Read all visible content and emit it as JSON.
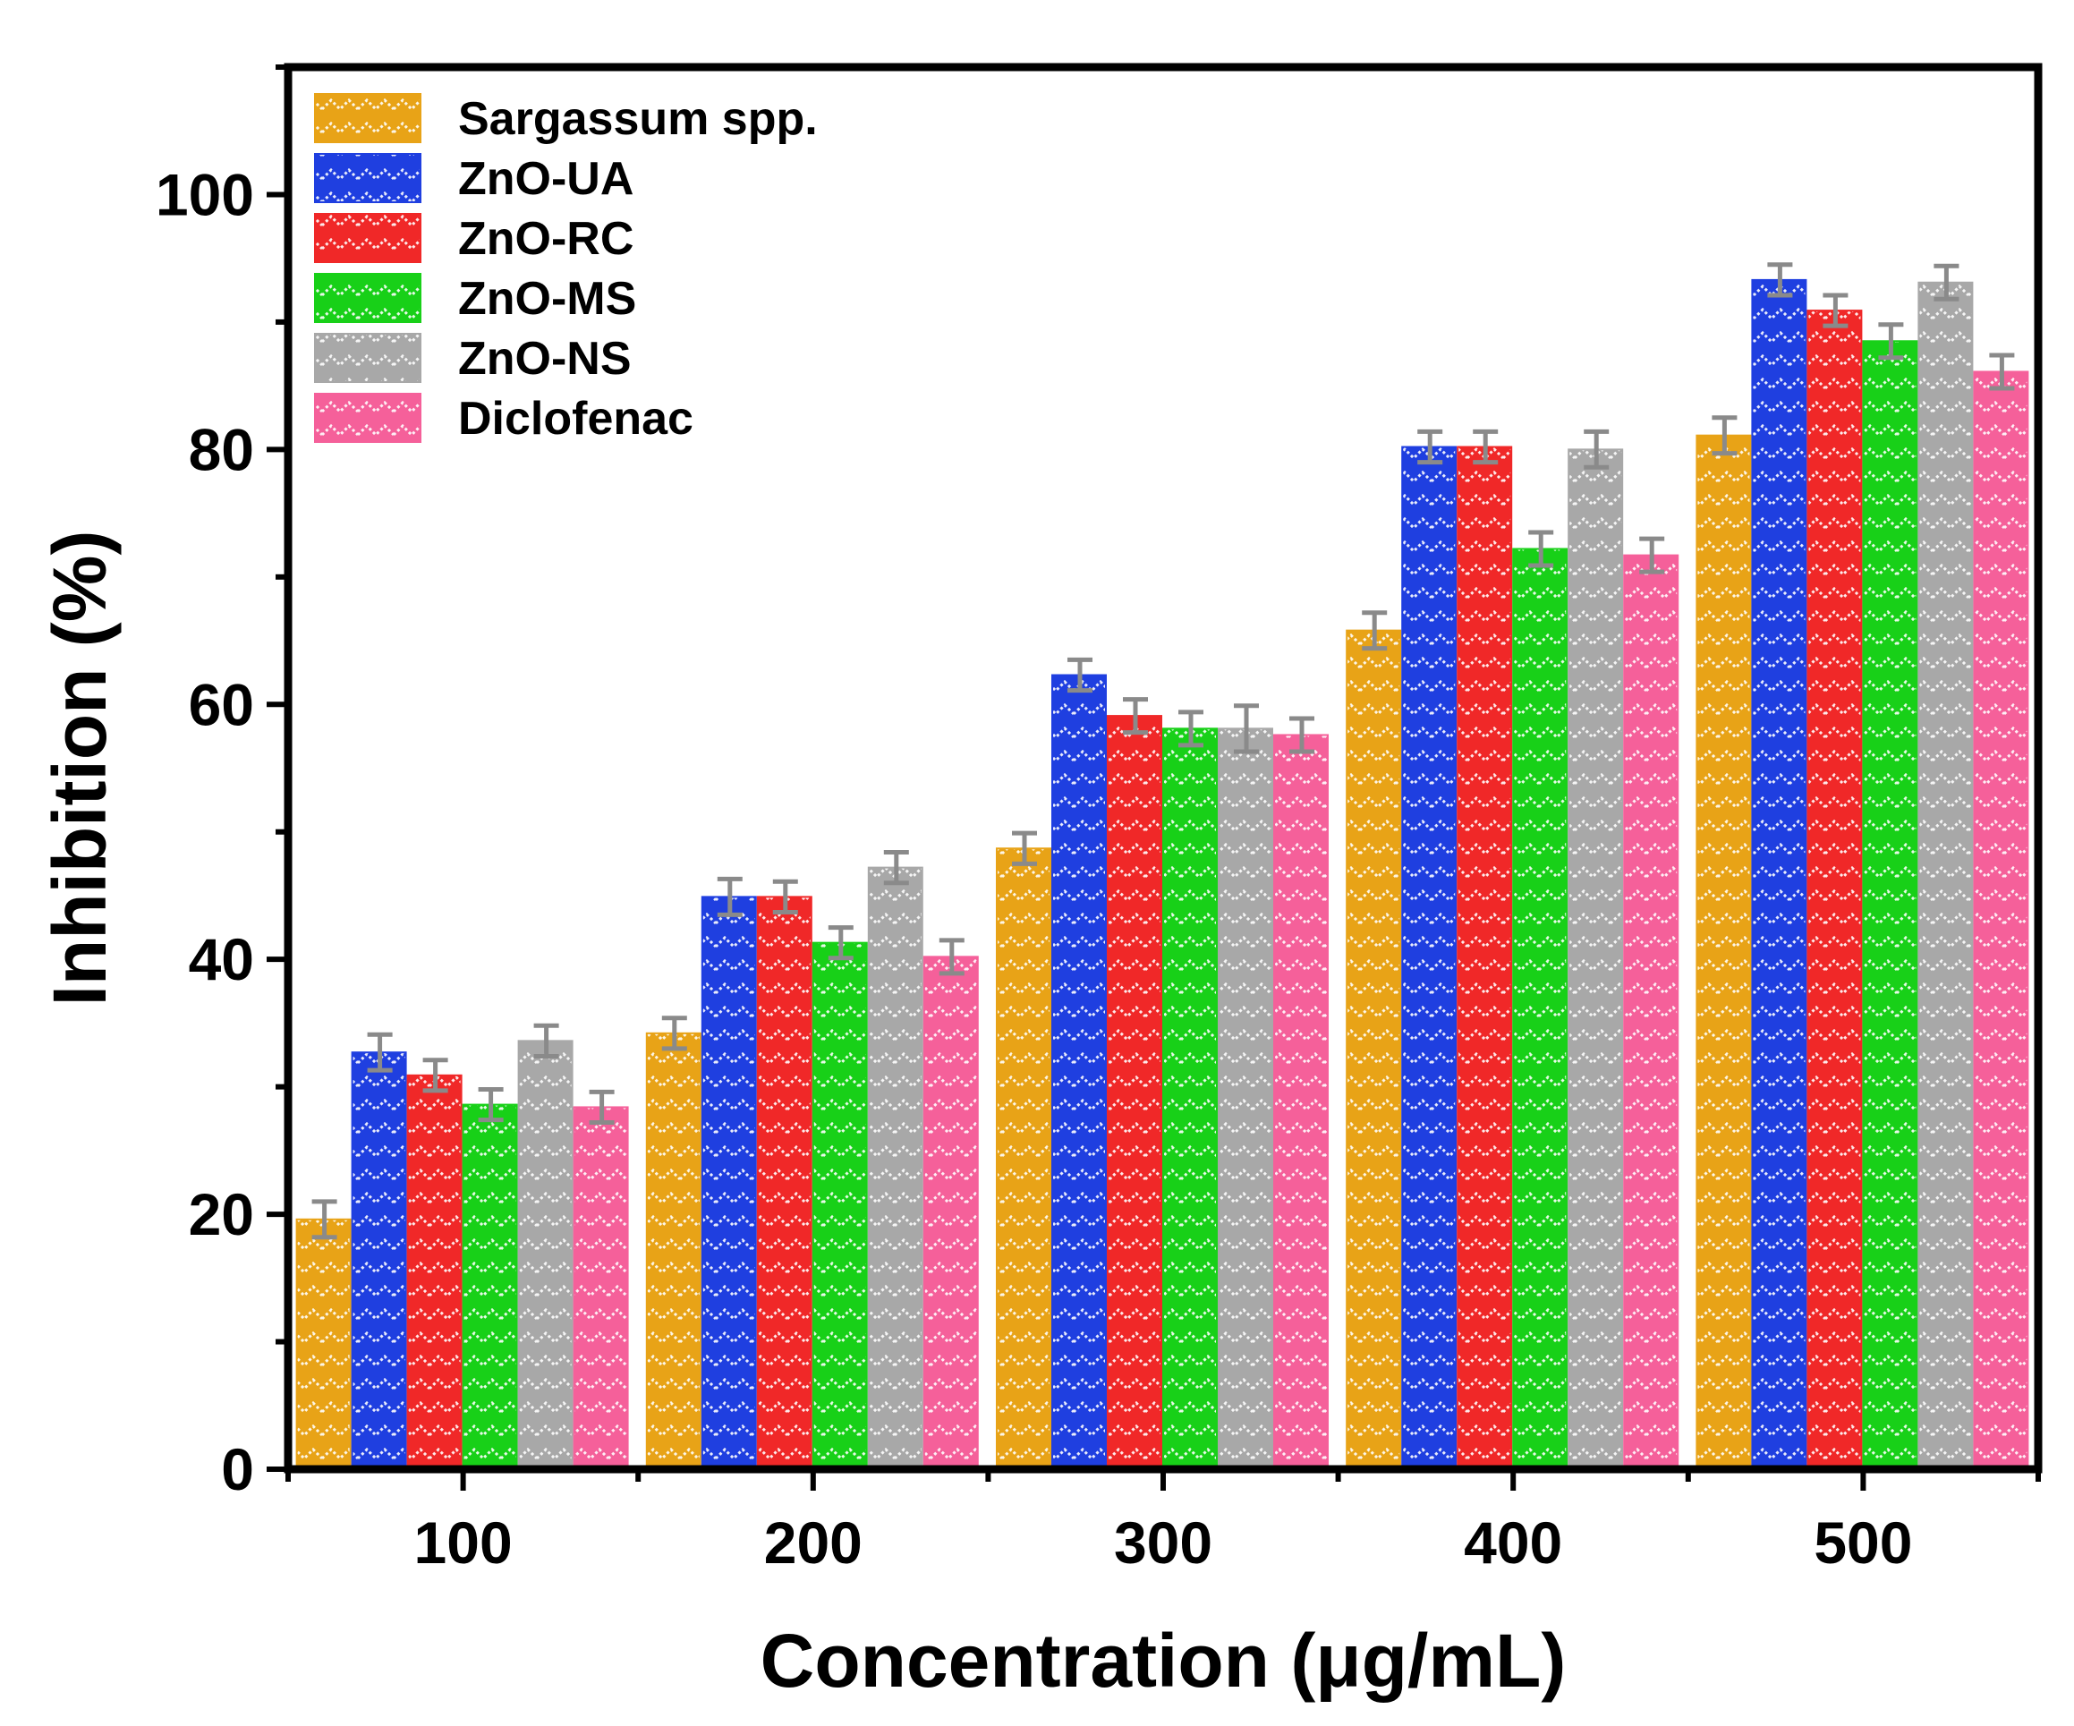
{
  "chart_data": {
    "type": "bar",
    "title": "",
    "xlabel": "Concentration (μg/mL)",
    "ylabel": "Inhibition (%)",
    "ylim": [
      0,
      110
    ],
    "yticks": [
      0,
      20,
      40,
      60,
      80,
      100
    ],
    "categories": [
      "100",
      "200",
      "300",
      "400",
      "500"
    ],
    "legend_position": "top-left",
    "grid": false,
    "series": [
      {
        "name": "Sargassum spp.",
        "color": "#E8A317",
        "values": [
          19.6,
          34.2,
          48.7,
          65.8,
          81.1
        ],
        "errors": [
          1.4,
          1.2,
          1.2,
          1.4,
          1.4
        ]
      },
      {
        "name": "ZnO-UA",
        "color": "#1F3FE0",
        "values": [
          32.7,
          44.9,
          62.3,
          80.2,
          93.3
        ],
        "errors": [
          1.4,
          1.4,
          1.2,
          1.2,
          1.2
        ]
      },
      {
        "name": "ZnO-RC",
        "color": "#F02828",
        "values": [
          30.9,
          44.9,
          59.1,
          80.2,
          90.9
        ],
        "errors": [
          1.2,
          1.2,
          1.3,
          1.2,
          1.2
        ]
      },
      {
        "name": "ZnO-MS",
        "color": "#18D018",
        "values": [
          28.6,
          41.3,
          58.1,
          72.2,
          88.5
        ],
        "errors": [
          1.2,
          1.2,
          1.3,
          1.3,
          1.3
        ]
      },
      {
        "name": "ZnO-NS",
        "color": "#A8A8A8",
        "values": [
          33.6,
          47.2,
          58.1,
          80.0,
          93.1
        ],
        "errors": [
          1.2,
          1.2,
          1.8,
          1.4,
          1.3
        ]
      },
      {
        "name": "Diclofenac",
        "color": "#F5609A",
        "values": [
          28.4,
          40.2,
          57.6,
          71.7,
          86.1
        ],
        "errors": [
          1.2,
          1.3,
          1.3,
          1.3,
          1.3
        ]
      }
    ]
  }
}
